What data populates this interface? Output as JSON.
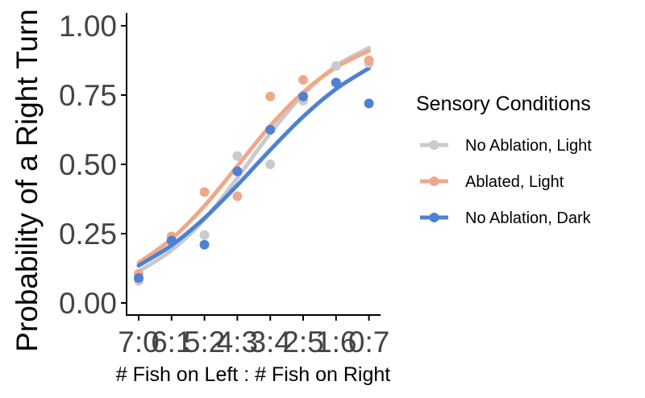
{
  "chart_data": {
    "type": "scatter",
    "title": "",
    "xlabel": "# Fish on Left : # Fish on Right",
    "ylabel": "Probability of a Right Turn",
    "categories": [
      "7:0",
      "6:1",
      "5:2",
      "4:3",
      "3:4",
      "2:5",
      "1:6",
      "0:7"
    ],
    "x": [
      0,
      1,
      2,
      3,
      4,
      5,
      6,
      7
    ],
    "ylim": [
      0,
      1
    ],
    "yticks": [
      0.0,
      0.25,
      0.5,
      0.75,
      1.0
    ],
    "ytick_labels": [
      "0.00",
      "0.25",
      "0.50",
      "0.75",
      "1.00"
    ],
    "xtick_labels": [
      "7:0",
      "6:1",
      "5:2",
      "4:3",
      "3:4",
      "2:5",
      "1:6",
      "0:7"
    ],
    "grid": false,
    "legend": {
      "title": "Sensory Conditions",
      "placement": "right"
    },
    "series": [
      {
        "name": "No Ablation, Light",
        "color": "#c8cace",
        "points": [
          0.08,
          0.24,
          0.245,
          0.53,
          0.5,
          0.73,
          0.855,
          0.865
        ],
        "fit": [
          0.114,
          0.19,
          0.302,
          0.451,
          0.612,
          0.752,
          0.855,
          0.92
        ]
      },
      {
        "name": "Ablated, Light",
        "color": "#f0a88a",
        "points": [
          0.105,
          0.24,
          0.4,
          0.385,
          0.745,
          0.805,
          0.795,
          0.875
        ],
        "fit": [
          0.145,
          0.231,
          0.35,
          0.494,
          0.639,
          0.76,
          0.85,
          0.91
        ]
      },
      {
        "name": "No Ablation, Dark",
        "color": "#4e81d2",
        "points": [
          0.09,
          0.225,
          0.21,
          0.475,
          0.625,
          0.745,
          0.795,
          0.72
        ],
        "fit": [
          0.135,
          0.208,
          0.306,
          0.425,
          0.552,
          0.672,
          0.772,
          0.847
        ]
      }
    ]
  }
}
